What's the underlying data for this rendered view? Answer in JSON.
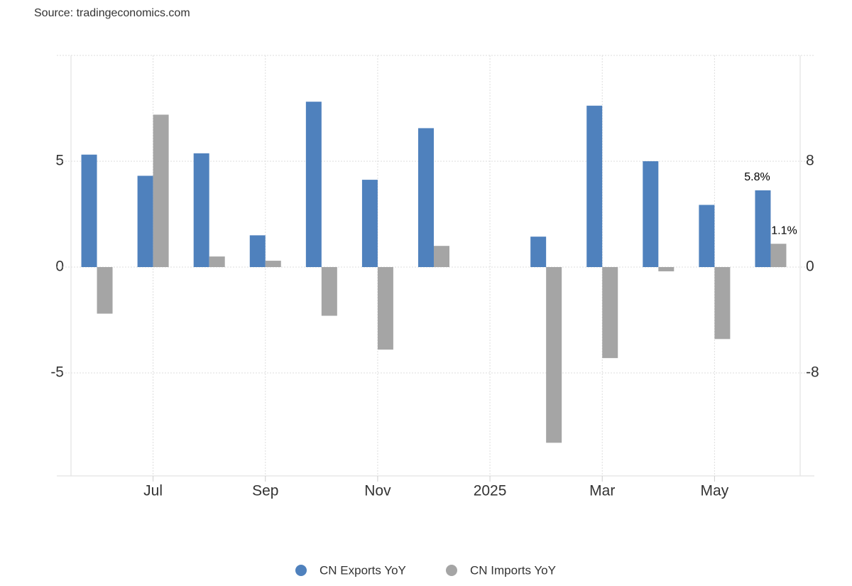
{
  "source": "Source: tradingeconomics.com",
  "chart_data": {
    "type": "bar",
    "categories": [
      null,
      "Jul",
      null,
      "Sep",
      null,
      "Nov",
      null,
      "2025",
      null,
      "Mar",
      null,
      "May",
      null
    ],
    "series": [
      {
        "name": "CN Exports YoY",
        "color": "#4f81bd",
        "axis": "y2",
        "values": [
          8.5,
          6.9,
          8.6,
          2.4,
          12.5,
          6.6,
          10.5,
          null,
          2.3,
          12.2,
          8.0,
          4.7,
          5.8
        ],
        "value_labels": [
          null,
          null,
          null,
          null,
          null,
          null,
          null,
          null,
          null,
          null,
          null,
          null,
          "5.8%"
        ]
      },
      {
        "name": "CN Imports YoY",
        "color": "#a5a5a5",
        "values": [
          -2.2,
          7.2,
          0.5,
          0.3,
          -2.3,
          -3.9,
          1.0,
          null,
          -8.3,
          -4.3,
          -0.2,
          -3.4,
          1.1
        ],
        "value_labels": [
          null,
          null,
          null,
          null,
          null,
          null,
          null,
          null,
          null,
          null,
          null,
          null,
          "1.1%"
        ]
      }
    ],
    "ylim": [
      -10,
      10
    ],
    "yticks": [
      5,
      0,
      -5
    ],
    "y2lim": [
      -16,
      16
    ],
    "y2ticks": [
      8,
      0,
      -8
    ],
    "grid": true,
    "legend": "bottom"
  }
}
